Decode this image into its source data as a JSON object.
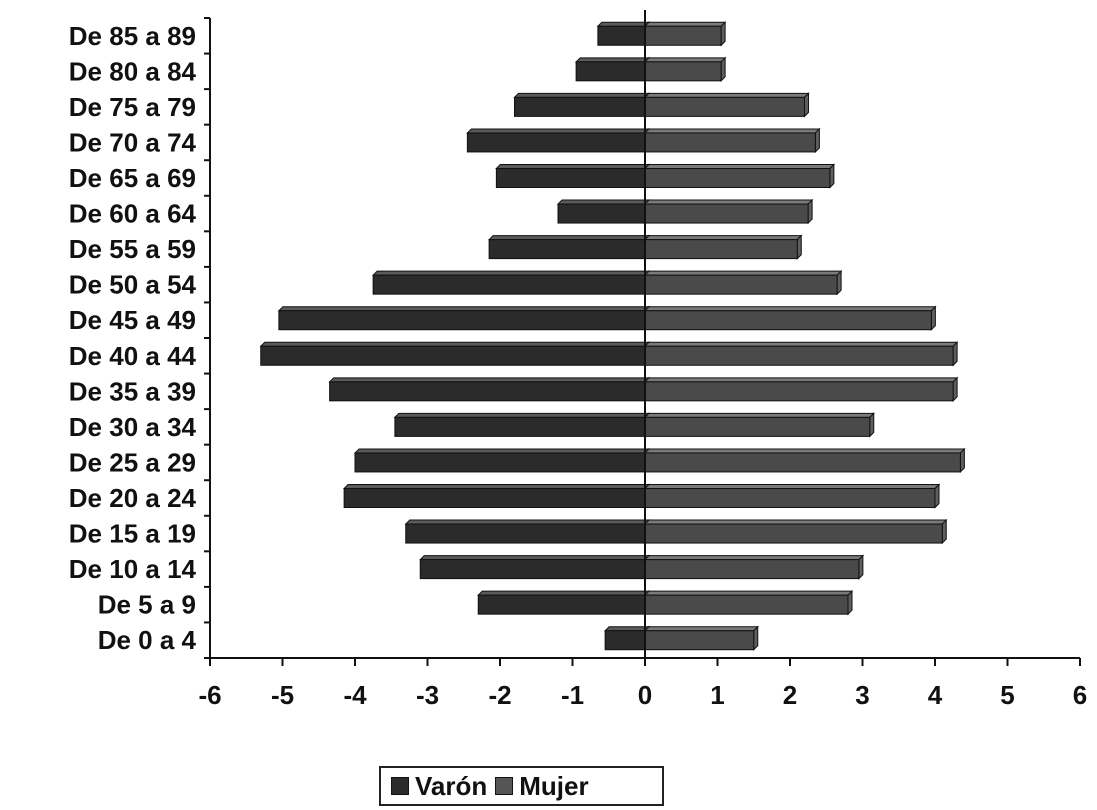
{
  "chart_data": {
    "type": "bar",
    "orientation": "horizontal",
    "categories": [
      "De 85 a 89",
      "De 80 a 84",
      "De 75 a 79",
      "De 70 a 74",
      "De 65 a 69",
      "De 60 a 64",
      "De 55 a 59",
      "De 50 a 54",
      "De 45 a 49",
      "De 40 a 44",
      "De 35 a 39",
      "De 30 a 34",
      "De 25 a 29",
      "De 20 a 24",
      "De 15 a 19",
      "De 10 a 14",
      "De 5 a 9",
      "De 0 a 4"
    ],
    "series": [
      {
        "name": "Varón",
        "color": "#2b2b2b",
        "values": [
          -0.65,
          -0.95,
          -1.8,
          -2.45,
          -2.05,
          -1.2,
          -2.15,
          -3.75,
          -5.05,
          -5.3,
          -4.35,
          -3.45,
          -4.0,
          -4.15,
          -3.3,
          -3.1,
          -2.3,
          -0.55
        ]
      },
      {
        "name": "Mujer",
        "color": "#4a4a4a",
        "values": [
          1.05,
          1.05,
          2.2,
          2.35,
          2.55,
          2.25,
          2.1,
          2.65,
          3.95,
          4.25,
          4.25,
          3.1,
          4.35,
          4.0,
          4.1,
          2.95,
          2.8,
          1.5
        ]
      }
    ],
    "xlim": [
      -6,
      6
    ],
    "xticks": [
      "-6",
      "-5",
      "-4",
      "-3",
      "-2",
      "-1",
      "0",
      "1",
      "2",
      "3",
      "4",
      "5",
      "6"
    ],
    "legend_position": "bottom-center",
    "title": "",
    "xlabel": "",
    "ylabel": ""
  },
  "legend": {
    "items": [
      {
        "label": "Varón",
        "color": "#2b2b2b"
      },
      {
        "label": "Mujer",
        "color": "#555555"
      }
    ]
  }
}
